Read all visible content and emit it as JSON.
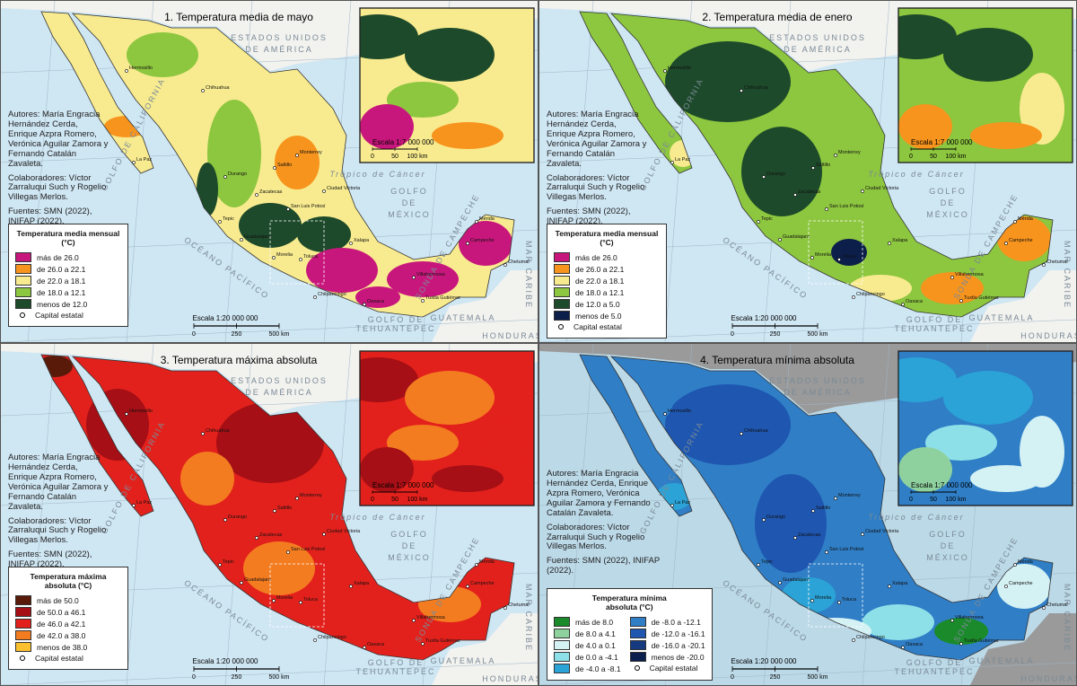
{
  "panels": [
    {
      "title": "1. Temperatura media de mayo",
      "credits": [
        "Autores: María Engracia Hernández Cerda, Enrique Azpra Romero, Verónica Aguilar Zamora y Fernando Catalán Zavaleta.",
        "Colaboradores: Víctor Zarraluqui Such y Rogelio Villegas Merlos.",
        "Fuentes: SMN (2022), INIFAP (2022)."
      ],
      "legend": {
        "title": "Temperatura media mensual (°C)",
        "items": [
          {
            "label": "más de 26.0",
            "color": "#c8177c"
          },
          {
            "label": "de 26.0 a 22.1",
            "color": "#f7941d"
          },
          {
            "label": "de 22.0 a 18.1",
            "color": "#f8eb8f"
          },
          {
            "label": "de 18.0 a 12.1",
            "color": "#8dc63f"
          },
          {
            "label": "menos de 12.0",
            "color": "#1d4a2a"
          }
        ]
      }
    },
    {
      "title": "2. Temperatura media de enero",
      "credits": [
        "Autores: María Engracia Hernández Cerda, Enrique Azpra Romero, Verónica Aguilar Zamora y Fernando Catalán Zavaleta.",
        "Colaboradores: Víctor Zarraluqui Such y Rogelio Villegas Merlos.",
        "Fuentes: SMN (2022), INIFAP (2022)."
      ],
      "legend": {
        "title": "Temperatura media mensual (°C)",
        "items": [
          {
            "label": "más de 26.0",
            "color": "#c8177c"
          },
          {
            "label": "de 26.0 a 22.1",
            "color": "#f7941d"
          },
          {
            "label": "de 22.0 a 18.1",
            "color": "#f8eb8f"
          },
          {
            "label": "de 18.0 a 12.1",
            "color": "#8dc63f"
          },
          {
            "label": "de 12.0 a 5.0",
            "color": "#1d4a2a"
          },
          {
            "label": "menos de 5.0",
            "color": "#0c1e4a"
          }
        ]
      }
    },
    {
      "title": "3. Temperatura máxima absoluta",
      "credits": [
        "Autores: María Engracia Hernández Cerda, Enrique Azpra Romero, Verónica Aguilar Zamora y Fernando Catalán Zavaleta.",
        "Colaboradores: Víctor Zarraluqui Such y Rogelio Villegas Merlos.",
        "Fuentes: SMN (2022), INIFAP (2022)."
      ],
      "legend": {
        "title": "Temperatura máxima absoluta (°C)",
        "items": [
          {
            "label": "más de 50.0",
            "color": "#5a1a0a"
          },
          {
            "label": "de 50.0 a 46.1",
            "color": "#a50f15"
          },
          {
            "label": "de 46.0 a 42.1",
            "color": "#e3211c"
          },
          {
            "label": "de 42.0 a 38.0",
            "color": "#f47c20"
          },
          {
            "label": "menos de 38.0",
            "color": "#fbc02d"
          }
        ]
      }
    },
    {
      "title": "4. Temperatura mínima absoluta",
      "credits": [
        "Autores: María Engracia Hernández Cerda, Enrique Azpra Romero, Verónica Aguilar Zamora y Fernando Catalán Zavaleta.",
        "Colaboradores: Víctor Zarraluqui Such y Rogelio Villegas Merlos.",
        "Fuentes: SMN (2022), INIFAP (2022)."
      ],
      "legend": {
        "title": "Temperatura mínima absoluta (°C)",
        "items": [
          {
            "label": "más de 8.0",
            "color": "#1a8a2a"
          },
          {
            "label": "de 8.0 a 4.1",
            "color": "#8fd19e"
          },
          {
            "label": "de 4.0 a 0.1",
            "color": "#d4f1f4"
          },
          {
            "label": "de 0.0 a -4.1",
            "color": "#8ee0e8"
          },
          {
            "label": "de -4.0 a -8.1",
            "color": "#2ba3d6"
          },
          {
            "label": "de -8.0 a -12.1",
            "color": "#2f7ec6"
          },
          {
            "label": "de -12.0 a -16.1",
            "color": "#1e56b0"
          },
          {
            "label": "de -16.0 a -20.1",
            "color": "#163a80"
          },
          {
            "label": "menos de -20.0",
            "color": "#0a1f4d"
          }
        ]
      }
    }
  ],
  "capital_label": "Capital estatal",
  "scale": {
    "label": "Escala 1:20 000 000",
    "ticks": [
      "0",
      "250",
      "500 km"
    ]
  },
  "inset_scale": {
    "label": "Escala 1:7 000 000",
    "ticks": [
      "0",
      "50",
      "100 km"
    ]
  },
  "map_labels": {
    "usa_1": "ESTADOS UNIDOS",
    "usa_2": "DE AMÉRICA",
    "gulf_1": "GOLFO",
    "gulf_2": "DE",
    "gulf_3": "MÉXICO",
    "pacific": "OCÉANO PACÍFICO",
    "california": "GOLFO DE CALIFORNIA",
    "tropic": "Trópico de Cáncer",
    "campeche": "SONDA DE CAMPECHE",
    "guatemala": "GUATEMALA",
    "honduras": "HONDURAS",
    "caribe": "MAR CARIBE",
    "tehuantepec_1": "GOLFO DE",
    "tehuantepec_2": "TEHUANTEPEC"
  },
  "cities": [
    "Hermosillo",
    "Chihuahua",
    "La Paz",
    "Monterrey",
    "Saltillo",
    "Durango",
    "Ciudad Victoria",
    "Zacatecas",
    "San Luis Potosí",
    "Tepic",
    "Guadalajara",
    "Morelia",
    "Toluca",
    "Chilpancingo",
    "Oaxaca",
    "Xalapa",
    "Villahermosa",
    "Tuxtla Gutiérrez",
    "Campeche",
    "Mérida",
    "Chetumal"
  ]
}
